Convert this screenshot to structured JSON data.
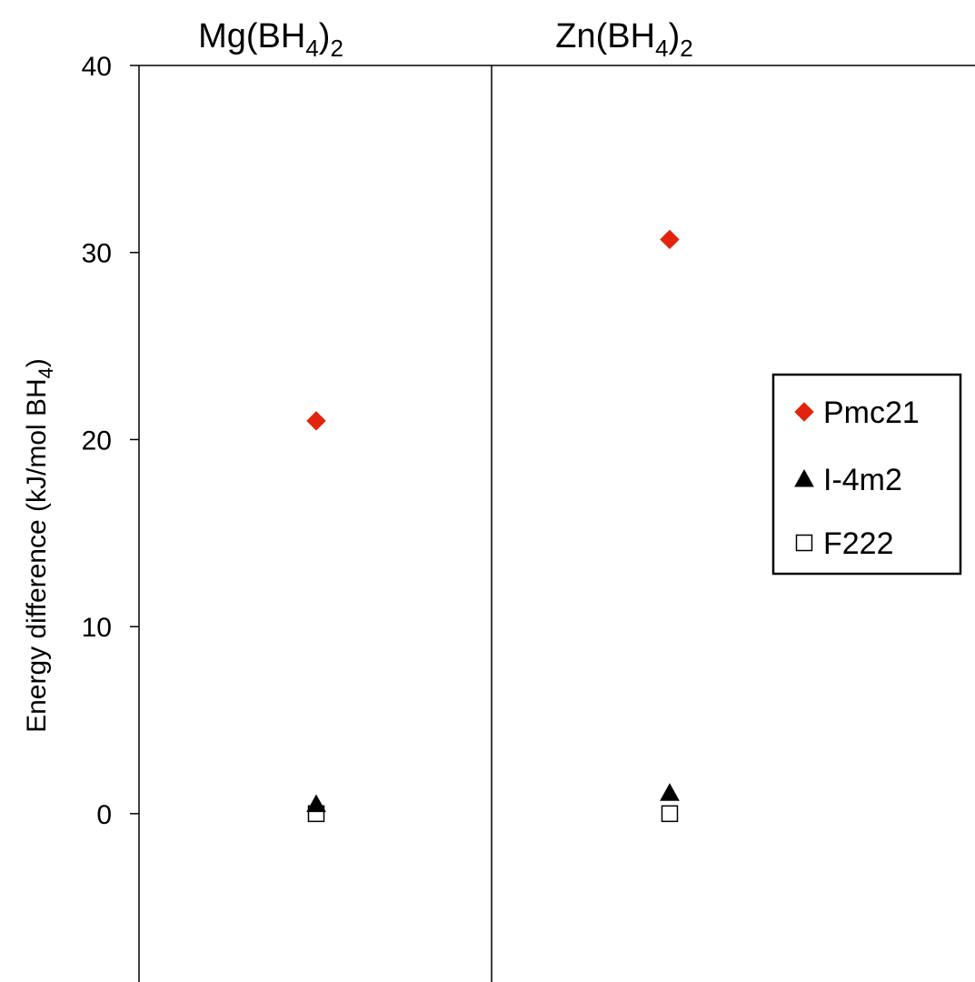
{
  "chart_data": {
    "type": "scatter",
    "categories": [
      {
        "base": "Mg(BH",
        "sub": "4",
        "close": ")",
        "sub2": "2"
      },
      {
        "base": "Zn(BH",
        "sub": "4",
        "close": ")",
        "sub2": "2"
      }
    ],
    "ylabel": {
      "text": "Energy difference (kJ/mol BH",
      "sub": "4",
      "close": ")"
    },
    "ylim": [
      -9,
      40
    ],
    "yticks": [
      0,
      10,
      20,
      30,
      40
    ],
    "grid": false,
    "legend_position": "right",
    "series": [
      {
        "name": "Pmc21",
        "marker": "diamond",
        "color": "#e2240c",
        "values": [
          21.0,
          30.7
        ]
      },
      {
        "name": "I-4m2",
        "marker": "triangle",
        "color": "#000000",
        "values": [
          0.5,
          1.1
        ]
      },
      {
        "name": "F222",
        "marker": "square-open",
        "color": "#000000",
        "values": [
          0.0,
          0.0
        ]
      }
    ]
  }
}
